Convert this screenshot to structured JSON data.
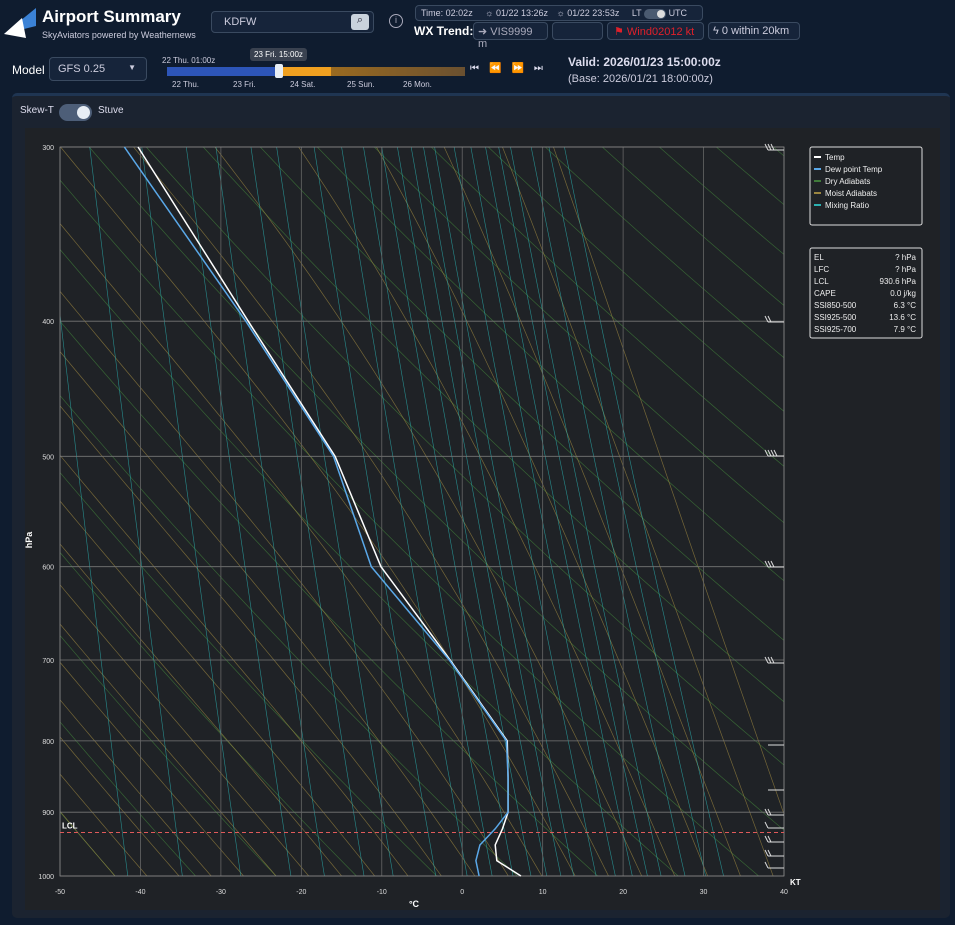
{
  "header": {
    "title": "Airport Summary",
    "subtitle": "SkyAviators powered by Weathernews",
    "search": "KDFW",
    "time": "Time: 02:02z",
    "sunrise": "01/22 13:26z",
    "sunset": "01/22 23:53z",
    "lt": "LT",
    "utc": "UTC",
    "wx_trend": "WX Trend:",
    "vis": "VIS9999 m",
    "wind": "Wind02012 kt",
    "lightning": "0 within 20km"
  },
  "model": {
    "label": "Model",
    "value": "GFS 0.25"
  },
  "timeline": {
    "start": "22 Thu. 01:00z",
    "current": "23 Fri. 15:00z",
    "days": [
      "22 Thu.",
      "23 Fri.",
      "24 Sat.",
      "25 Sun.",
      "26 Mon."
    ]
  },
  "valid": {
    "valid": "Valid: 2026/01/23 15:00:00z",
    "base": "(Base: 2026/01/21 18:00:00z)"
  },
  "view_toggle": {
    "left": "Skew-T",
    "right": "Stuve"
  },
  "chart_data": {
    "type": "skewt",
    "y_label": "hPa",
    "x_label": "°C",
    "pressure": [
      1000,
      975,
      950,
      925,
      900,
      850,
      800,
      700,
      600,
      500,
      400,
      300
    ],
    "series": [
      {
        "name": "Temp",
        "color": "#ffffff",
        "values": [
          7.3,
          4.3,
          4.1,
          5.0,
          5.7,
          5.7,
          5.6,
          -1.5,
          -10.1,
          -15.8,
          -26.6,
          -40.3
        ]
      },
      {
        "name": "Dew point Temp",
        "color": "#5aa8e8",
        "values": [
          2.1,
          1.7,
          2.2,
          4.1,
          5.7,
          5.7,
          5.5,
          -1.6,
          -11.3,
          -16.0,
          -26.9,
          -42.0
        ]
      }
    ],
    "reference_lines": [
      {
        "name": "Dry Adiabats",
        "color": "#3f7a3a"
      },
      {
        "name": "Moist Adiabats",
        "color": "#9a8540"
      },
      {
        "name": "Mixing Ratio",
        "color": "#2bb0b0"
      }
    ],
    "xlim": [
      -50,
      40
    ],
    "xticks": [
      -50,
      -40,
      -30,
      -20,
      -10,
      0,
      10,
      20,
      30,
      40
    ],
    "ylim": [
      1000,
      300
    ],
    "yticks": [
      300,
      400,
      500,
      600,
      700,
      800,
      900,
      1000
    ],
    "log_y": true,
    "grid": true,
    "lcl": {
      "label": "LCL",
      "value": 930.6
    },
    "wind_unit": "KT"
  },
  "indices": {
    "rows": [
      [
        "EL",
        "? hPa"
      ],
      [
        "LFC",
        "? hPa"
      ],
      [
        "LCL",
        "930.6 hPa"
      ],
      [
        "CAPE",
        "0.0 j/kg"
      ],
      [
        "SSI850-500",
        "6.3 °C"
      ],
      [
        "SSI925-500",
        "13.6 °C"
      ],
      [
        "SSI925-700",
        "7.9 °C"
      ]
    ]
  }
}
